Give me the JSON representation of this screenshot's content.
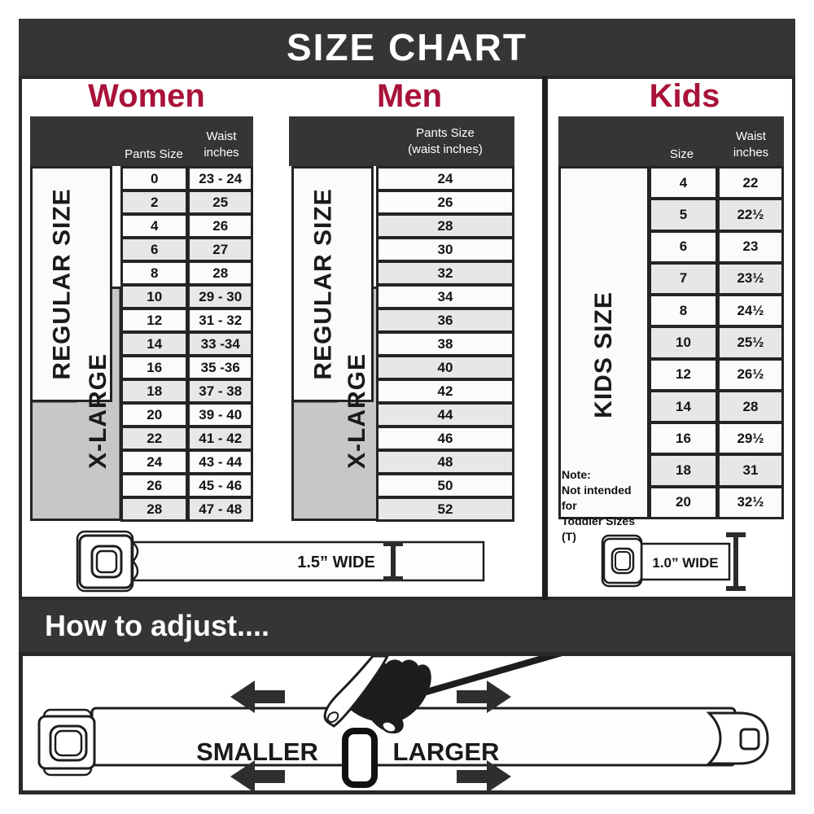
{
  "title": "SIZE CHART",
  "colors": {
    "accent_red": "#a91238",
    "banner_dark": "#343536",
    "xlarge_gray": "#c7c7c7",
    "row_shaded": "#e7e7e7",
    "row_plain": "#fbfbfb"
  },
  "women": {
    "title": "Women",
    "col1_header": "Pants Size",
    "col2_header_line1": "Waist",
    "col2_header_line2": "inches",
    "regular_label": "REGULAR SIZE",
    "xlarge_label": "X-LARGE",
    "rows": [
      {
        "size": "0",
        "waist": "23 - 24",
        "shaded": false
      },
      {
        "size": "2",
        "waist": "25",
        "shaded": true
      },
      {
        "size": "4",
        "waist": "26",
        "shaded": false
      },
      {
        "size": "6",
        "waist": "27",
        "shaded": true
      },
      {
        "size": "8",
        "waist": "28",
        "shaded": false
      },
      {
        "size": "10",
        "waist": "29 - 30",
        "shaded": true
      },
      {
        "size": "12",
        "waist": "31 - 32",
        "shaded": false
      },
      {
        "size": "14",
        "waist": "33 -34",
        "shaded": true
      },
      {
        "size": "16",
        "waist": "35 -36",
        "shaded": false
      },
      {
        "size": "18",
        "waist": "37 - 38",
        "shaded": true
      },
      {
        "size": "20",
        "waist": "39 - 40",
        "shaded": false
      },
      {
        "size": "22",
        "waist": "41 - 42",
        "shaded": true
      },
      {
        "size": "24",
        "waist": "43 - 44",
        "shaded": false
      },
      {
        "size": "26",
        "waist": "45 - 46",
        "shaded": false
      },
      {
        "size": "28",
        "waist": "47 - 48",
        "shaded": true
      }
    ]
  },
  "men": {
    "title": "Men",
    "header_line1": "Pants Size",
    "header_line2": "(waist inches)",
    "regular_label": "REGULAR SIZE",
    "xlarge_label": "X-LARGE",
    "rows": [
      {
        "size": "24",
        "shaded": false
      },
      {
        "size": "26",
        "shaded": false
      },
      {
        "size": "28",
        "shaded": true
      },
      {
        "size": "30",
        "shaded": false
      },
      {
        "size": "32",
        "shaded": true
      },
      {
        "size": "34",
        "shaded": false
      },
      {
        "size": "36",
        "shaded": true
      },
      {
        "size": "38",
        "shaded": false
      },
      {
        "size": "40",
        "shaded": true
      },
      {
        "size": "42",
        "shaded": false
      },
      {
        "size": "44",
        "shaded": true
      },
      {
        "size": "46",
        "shaded": false
      },
      {
        "size": "48",
        "shaded": true
      },
      {
        "size": "50",
        "shaded": false
      },
      {
        "size": "52",
        "shaded": true
      }
    ]
  },
  "kids": {
    "title": "Kids",
    "col1_header": "Size",
    "col2_header_line1": "Waist",
    "col2_header_line2": "inches",
    "label": "KIDS SIZE",
    "note_line1": "Note:",
    "note_line2": "Not intended for",
    "note_line3": "Toddler Sizes (T)",
    "rows": [
      {
        "size": "4",
        "waist": "22",
        "shaded": false
      },
      {
        "size": "5",
        "waist": "22½",
        "shaded": true
      },
      {
        "size": "6",
        "waist": "23",
        "shaded": false
      },
      {
        "size": "7",
        "waist": "23½",
        "shaded": true
      },
      {
        "size": "8",
        "waist": "24½",
        "shaded": false
      },
      {
        "size": "10",
        "waist": "25½",
        "shaded": true
      },
      {
        "size": "12",
        "waist": "26½",
        "shaded": false
      },
      {
        "size": "14",
        "waist": "28",
        "shaded": true
      },
      {
        "size": "16",
        "waist": "29½",
        "shaded": false
      },
      {
        "size": "18",
        "waist": "31",
        "shaded": true
      },
      {
        "size": "20",
        "waist": "32½",
        "shaded": false
      }
    ]
  },
  "belts": {
    "adult_width_label": "1.5” WIDE",
    "kids_width_label": "1.0” WIDE"
  },
  "adjust": {
    "heading": "How to adjust....",
    "smaller_label": "SMALLER",
    "larger_label": "LARGER"
  }
}
